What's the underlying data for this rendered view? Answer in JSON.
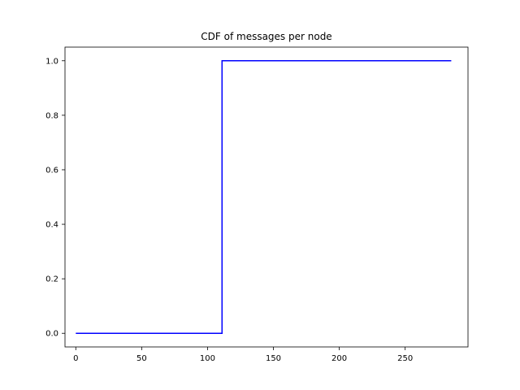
{
  "chart_data": {
    "type": "line",
    "title": "CDF of messages per node",
    "xlabel": "",
    "ylabel": "",
    "xlim": [
      -8.2,
      297.7
    ],
    "ylim": [
      -0.05,
      1.05
    ],
    "x_ticks": [
      0,
      50,
      100,
      150,
      200,
      250
    ],
    "y_ticks": [
      0.0,
      0.2,
      0.4,
      0.6,
      0.8,
      1.0
    ],
    "x_tick_labels": [
      "0",
      "50",
      "100",
      "150",
      "200",
      "250"
    ],
    "y_tick_labels": [
      "0.0",
      "0.2",
      "0.4",
      "0.6",
      "0.8",
      "1.0"
    ],
    "grid": false,
    "legend": "none",
    "series": [
      {
        "color": "#0000ff",
        "step": true,
        "x": [
          0,
          110,
          110,
          111,
          111,
          285
        ],
        "y": [
          0.0,
          0.0,
          0.0,
          0.0,
          1.0,
          1.0
        ]
      }
    ]
  }
}
